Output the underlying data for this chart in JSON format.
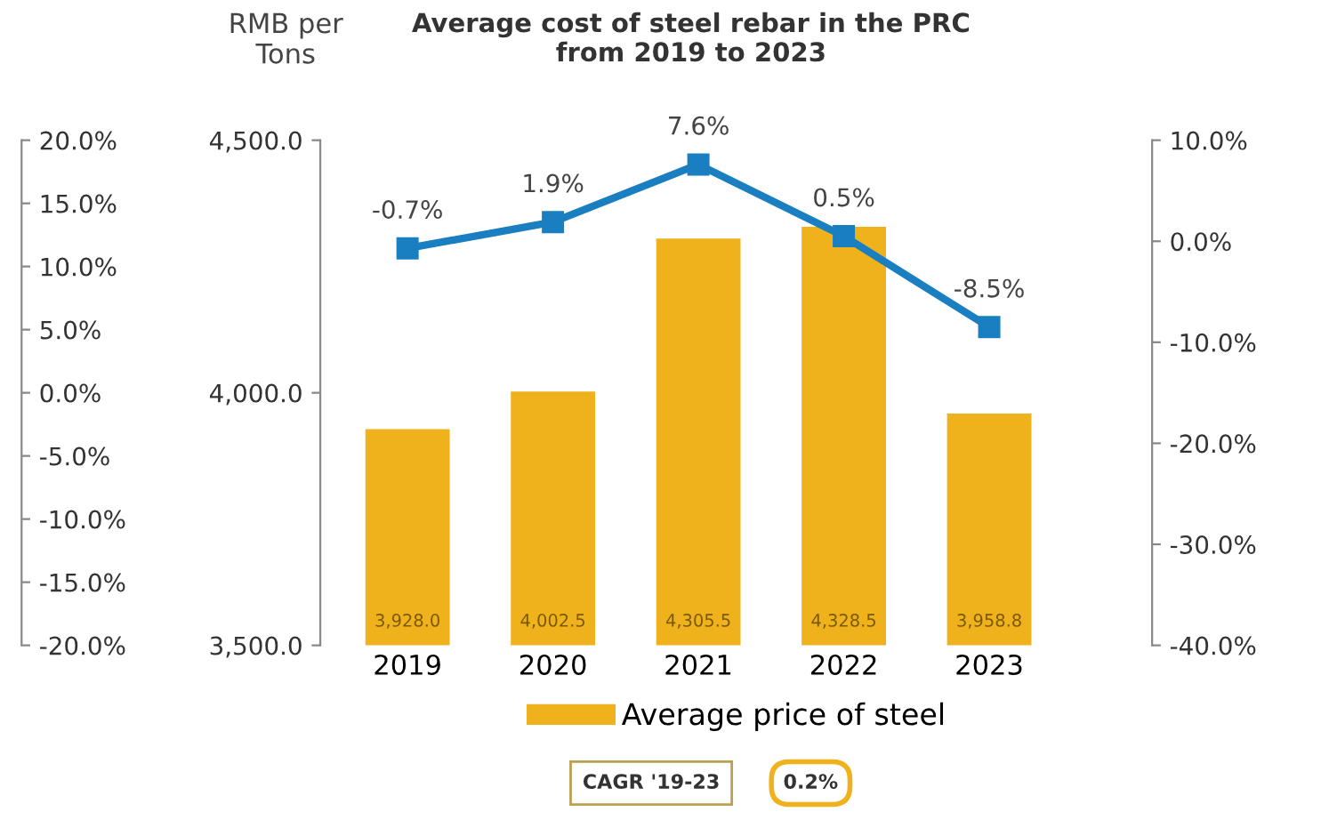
{
  "chart_data": {
    "type": "bar",
    "title": "Average cost of steel rebar in the PRC\nfrom 2019 to 2023",
    "ylabel": "RMB per\nTons",
    "categories": [
      "2019",
      "2020",
      "2021",
      "2022",
      "2023"
    ],
    "series": [
      {
        "name": "Average price of steel",
        "color": "#f0b21c",
        "values": [
          3928.0,
          4002.5,
          4305.5,
          4328.5,
          3958.8
        ],
        "value_labels": [
          "3,928.0",
          "4,002.5",
          "4,305.5",
          "4,328.5",
          "3,958.8"
        ]
      },
      {
        "type": "line",
        "axis": "y2",
        "color": "#1a7fc1",
        "marker": "square",
        "values": [
          -0.7,
          1.9,
          7.6,
          0.5,
          -8.5
        ],
        "value_labels": [
          "-0.7%",
          "1.9%",
          "7.6%",
          "0.5%",
          "-8.5%"
        ]
      }
    ],
    "ylim": [
      3500,
      4500
    ],
    "yticks": [
      {
        "value": 3500,
        "label": "3,500.0"
      },
      {
        "value": 4000,
        "label": "4,000.0"
      },
      {
        "value": 4500,
        "label": "4,500.0"
      }
    ],
    "y2lim": [
      -40,
      10
    ],
    "y2ticks": [
      {
        "value": -40,
        "label": "-40.0%"
      },
      {
        "value": -30,
        "label": "-30.0%"
      },
      {
        "value": -20,
        "label": "-20.0%"
      },
      {
        "value": -10,
        "label": "-10.0%"
      },
      {
        "value": 0,
        "label": "0.0%"
      },
      {
        "value": 10,
        "label": "10.0%"
      }
    ],
    "y3lim": [
      -20,
      20
    ],
    "y3ticks": [
      {
        "value": -20,
        "label": "-20.0%"
      },
      {
        "value": -15,
        "label": "-15.0%"
      },
      {
        "value": -10,
        "label": "-10.0%"
      },
      {
        "value": -5,
        "label": "-5.0%"
      },
      {
        "value": 0,
        "label": "0.0%"
      },
      {
        "value": 5,
        "label": "5.0%"
      },
      {
        "value": 10,
        "label": "10.0%"
      },
      {
        "value": 15,
        "label": "15.0%"
      },
      {
        "value": 20,
        "label": "20.0%"
      }
    ],
    "legend": "bottom",
    "grid": false,
    "annotations": [
      "CAGR '19-23",
      "0.2%"
    ]
  }
}
